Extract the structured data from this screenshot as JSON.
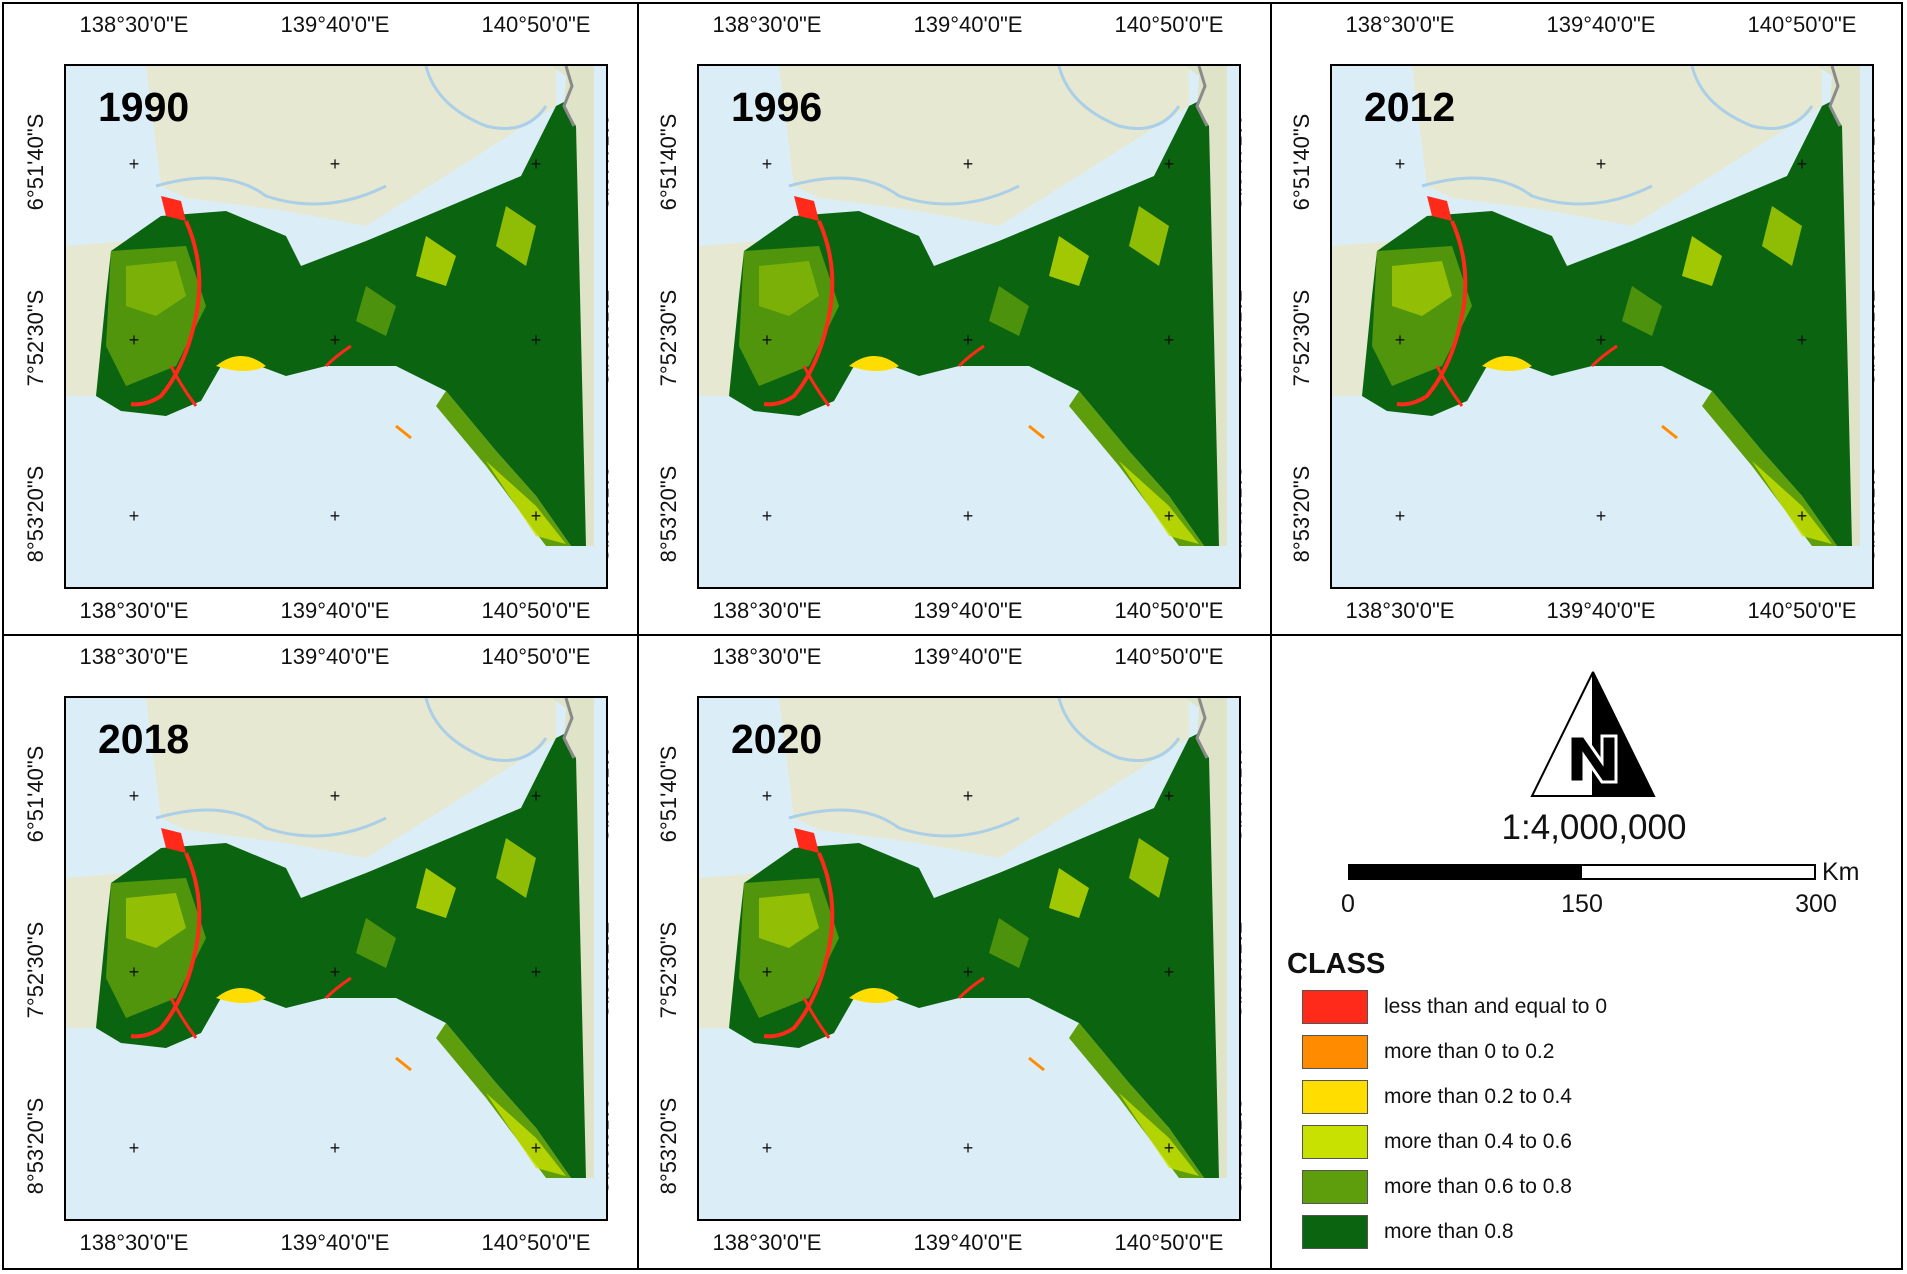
{
  "longitude_ticks": [
    "138°30'0\"E",
    "139°40'0\"E",
    "140°50'0\"E"
  ],
  "latitude_ticks": [
    "6°51'40\"S",
    "7°52'30\"S",
    "8°53'20\"S"
  ],
  "panels": [
    {
      "year": "1990"
    },
    {
      "year": "1996"
    },
    {
      "year": "2012"
    },
    {
      "year": "2018"
    },
    {
      "year": "2020"
    }
  ],
  "north_arrow": {
    "letter": "N"
  },
  "scale": {
    "ratio": "1:4,000,000",
    "labels": [
      "0",
      "150",
      "300"
    ],
    "unit": "Km"
  },
  "legend": {
    "title": "CLASS",
    "items": [
      {
        "label": "less than and equal to 0",
        "color": "#ff2a1a"
      },
      {
        "label": "more than 0 to 0.2",
        "color": "#ff8c00"
      },
      {
        "label": "more than 0.2 to 0.4",
        "color": "#ffdd00"
      },
      {
        "label": "more than 0.4 to 0.6",
        "color": "#c8e100"
      },
      {
        "label": "more than 0.6 to 0.8",
        "color": "#5e9e0c"
      },
      {
        "label": "more than 0.8",
        "color": "#0b6410"
      }
    ]
  },
  "colors": {
    "sea": "#dbeef8",
    "land": "#e6e8d2",
    "river": "#aacfe6"
  }
}
